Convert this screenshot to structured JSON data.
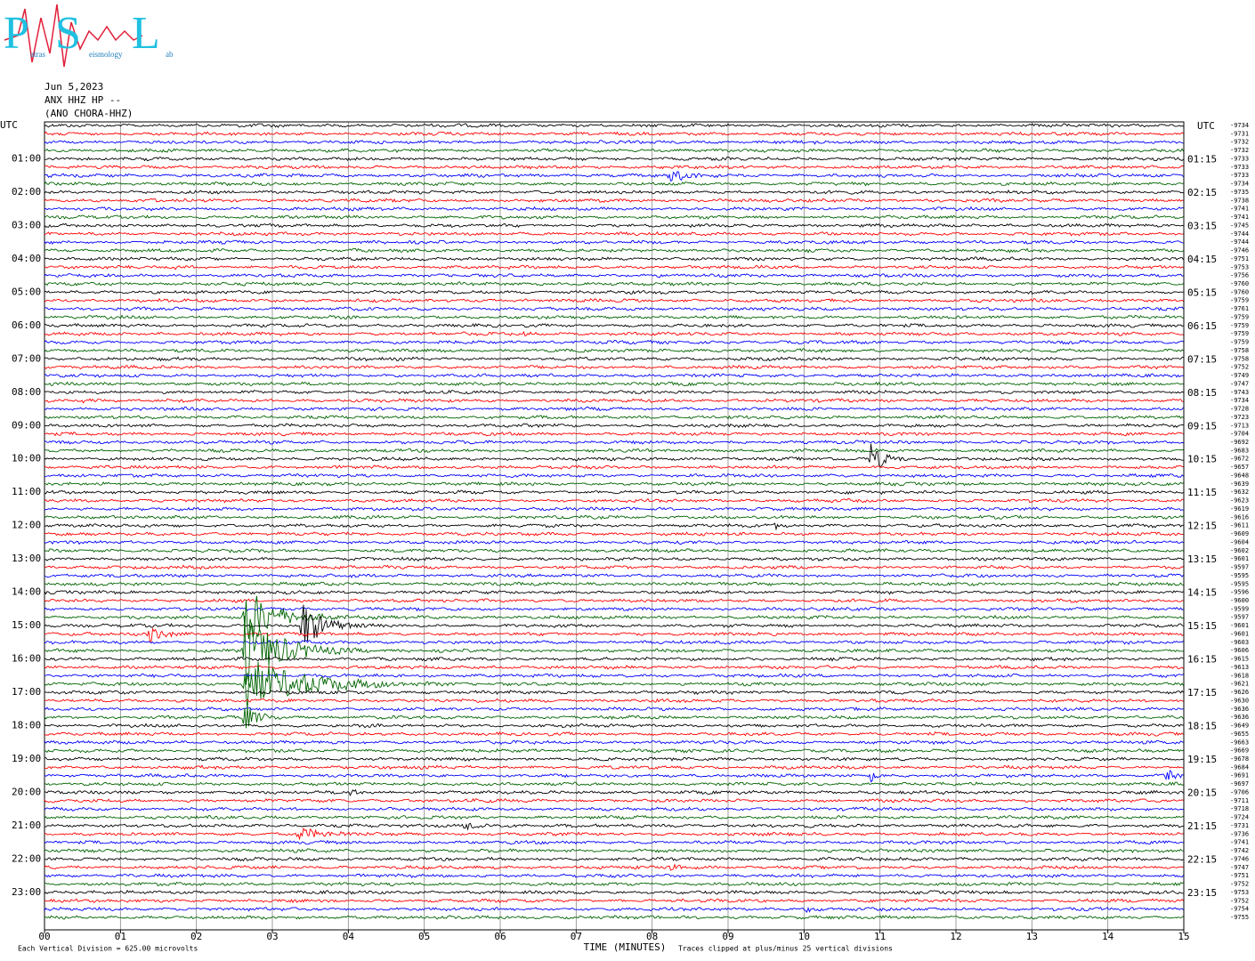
{
  "chart_data": {
    "type": "helicorder",
    "logo": [
      "P",
      "atras",
      "S",
      "eismology",
      "L",
      "ab"
    ],
    "header": [
      "Jun 5,2023",
      "ANX HHZ HP --",
      "(ANO CHORA-HHZ)"
    ],
    "xlabel": "TIME (MINUTES)",
    "xlim": [
      0,
      15
    ],
    "xticks": [
      {
        "value": 0,
        "label": "00"
      },
      {
        "value": 1,
        "label": "01"
      },
      {
        "value": 2,
        "label": "02"
      },
      {
        "value": 3,
        "label": "03"
      },
      {
        "value": 4,
        "label": "04"
      },
      {
        "value": 5,
        "label": "05"
      },
      {
        "value": 6,
        "label": "06"
      },
      {
        "value": 7,
        "label": "07"
      },
      {
        "value": 8,
        "label": "08"
      },
      {
        "value": 9,
        "label": "09"
      },
      10,
      11,
      12,
      13,
      14,
      15
    ],
    "left_labels": [
      "UTC",
      "01:00",
      "02:00",
      "03:00",
      "04:00",
      "05:00",
      "06:00",
      "07:00",
      "08:00",
      "09:00",
      "10:00",
      "11:00",
      "12:00",
      "13:00",
      "14:00",
      "15:00",
      "16:00",
      "17:00",
      "18:00",
      "19:00",
      "20:00",
      "21:00",
      "22:00",
      "23:00"
    ],
    "right_labels": [
      "UTC",
      "01:15",
      "02:15",
      "03:15",
      "04:15",
      "05:15",
      "06:15",
      "07:15",
      "08:15",
      "09:15",
      "10:15",
      "11:15",
      "12:15",
      "13:15",
      "14:15",
      "15:15",
      "16:15",
      "17:15",
      "18:15",
      "19:15",
      "20:15",
      "21:15",
      "22:15",
      "23:15"
    ],
    "trace_colors": [
      "#000000",
      "#ff0000",
      "#0000ff",
      "#006400"
    ],
    "trace_offsets": [
      -9734,
      -9731,
      -9732,
      -9732,
      -9733,
      -9733,
      -9733,
      -9734,
      -9735,
      -9738,
      -9741,
      -9741,
      -9745,
      -9744,
      -9744,
      -9746,
      -9751,
      -9753,
      -9756,
      -9760,
      -9760,
      -9759,
      -9761,
      -9759,
      -9759,
      -9759,
      -9759,
      -9758,
      -9758,
      -9752,
      -9749,
      -9747,
      -9743,
      -9734,
      -9728,
      -9723,
      -9713,
      -9704,
      -9692,
      -9683,
      -9672,
      -9657,
      -9648,
      -9639,
      -9632,
      -9623,
      -9619,
      -9616,
      -9611,
      -9609,
      -9604,
      -9602,
      -9601,
      -9597,
      -9595,
      -9595,
      -9596,
      -9600,
      -9599,
      -9597,
      -9601,
      -9601,
      -9603,
      -9606,
      -9615,
      -9613,
      -9618,
      -9621,
      -9626,
      -9630,
      -9636,
      -9636,
      -9649,
      -9655,
      -9663,
      -9669,
      -9678,
      -9684,
      -9691,
      -9697,
      -9706,
      -9711,
      -9718,
      -9724,
      -9731,
      -9736,
      -9741,
      -9742,
      -9746,
      -9747,
      -9751,
      -9752,
      -9753,
      -9752,
      -9754,
      -9755
    ],
    "notes": [
      "Each Vertical Division =  625.00 microvolts",
      "Traces clipped at plus/minus 25 vertical divisions"
    ]
  }
}
